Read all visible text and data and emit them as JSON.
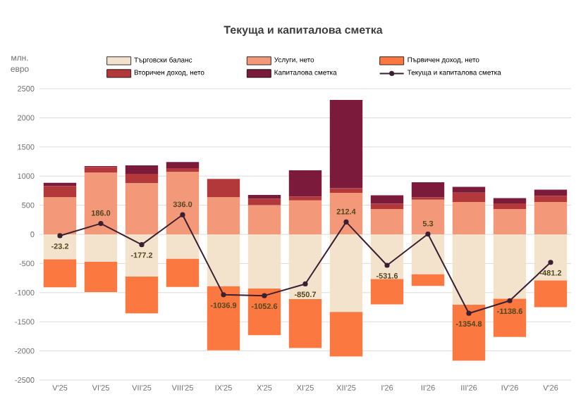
{
  "chart_data": {
    "type": "bar",
    "title": "Текуща и капиталова сметка",
    "ylabel": "млн. евро",
    "categories": [
      "V'25",
      "VI'25",
      "VII'25",
      "VIII'25",
      "IX'25",
      "X'25",
      "XI'25",
      "XII'25",
      "I'26",
      "II'26",
      "III'26",
      "IV'26",
      "V'26"
    ],
    "stacked": true,
    "series": [
      {
        "name": "Търговски баланс",
        "color": "#f3e3cc",
        "values": [
          -430,
          -470,
          -725,
          -419,
          -890,
          -930,
          -1112,
          -1330,
          -766,
          -685,
          -1209,
          -1104,
          -790
        ]
      },
      {
        "name": "Услуги, нето",
        "color": "#f4987a",
        "values": [
          637,
          1060,
          879,
          1072,
          637,
          500,
          584,
          712,
          435,
          596,
          556,
          435,
          556
        ]
      },
      {
        "name": "Първичен доход, нето",
        "color": "#fb7840",
        "values": [
          -480,
          -520,
          -630,
          -485,
          -1100,
          -800,
          -838,
          -766,
          -435,
          -201,
          -960,
          -655,
          -460
        ]
      },
      {
        "name": "Вторичен доход, нето",
        "color": "#b3383a",
        "values": [
          193,
          97,
          161,
          64,
          314,
          113,
          65,
          80,
          89,
          40,
          161,
          97,
          105
        ]
      },
      {
        "name": "Капиталова сметка",
        "color": "#7b1a3a",
        "values": [
          56,
          16,
          145,
          105,
          0,
          64,
          451,
          1516,
          145,
          258,
          97,
          89,
          105
        ]
      },
      {
        "name": "Текуща и капиталова сметка",
        "type": "line",
        "color": "#3b1f33",
        "marker": "circle",
        "values": [
          -23.2,
          186.0,
          -177.2,
          336.0,
          -1036.9,
          -1052.6,
          -850.7,
          212.4,
          -531.6,
          5.3,
          -1354.8,
          -1138.6,
          -481.2
        ],
        "value_labels": [
          "-23.2",
          "186.0",
          "-177.2",
          "336.0",
          "-1036.9",
          "-1052.6",
          "-850.7",
          "212.4",
          "-531.6",
          "5.3",
          "-1354.8",
          "-1138.6",
          "-481.2"
        ]
      }
    ],
    "ylim": [
      -2500,
      2500
    ],
    "yticks": [
      -2500,
      -2000,
      -1500,
      -1000,
      -500,
      0,
      500,
      1000,
      1500,
      2000,
      2500
    ],
    "grid": "y",
    "legend": "top"
  }
}
